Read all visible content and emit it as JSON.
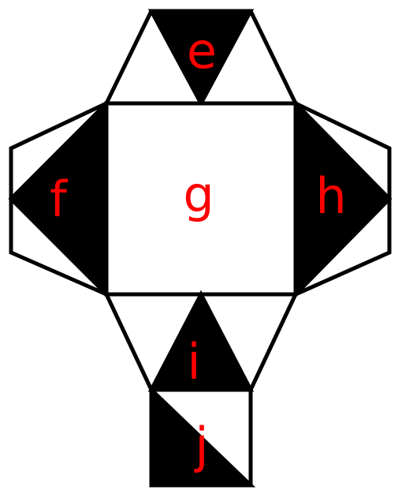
{
  "labels": {
    "e": "e",
    "f": "f",
    "g": "g",
    "h": "h",
    "i": "i",
    "j": "j"
  },
  "colors": {
    "label": "#ff0000",
    "fill_dark": "#000000",
    "fill_light": "#ffffff",
    "stroke": "#000000"
  }
}
